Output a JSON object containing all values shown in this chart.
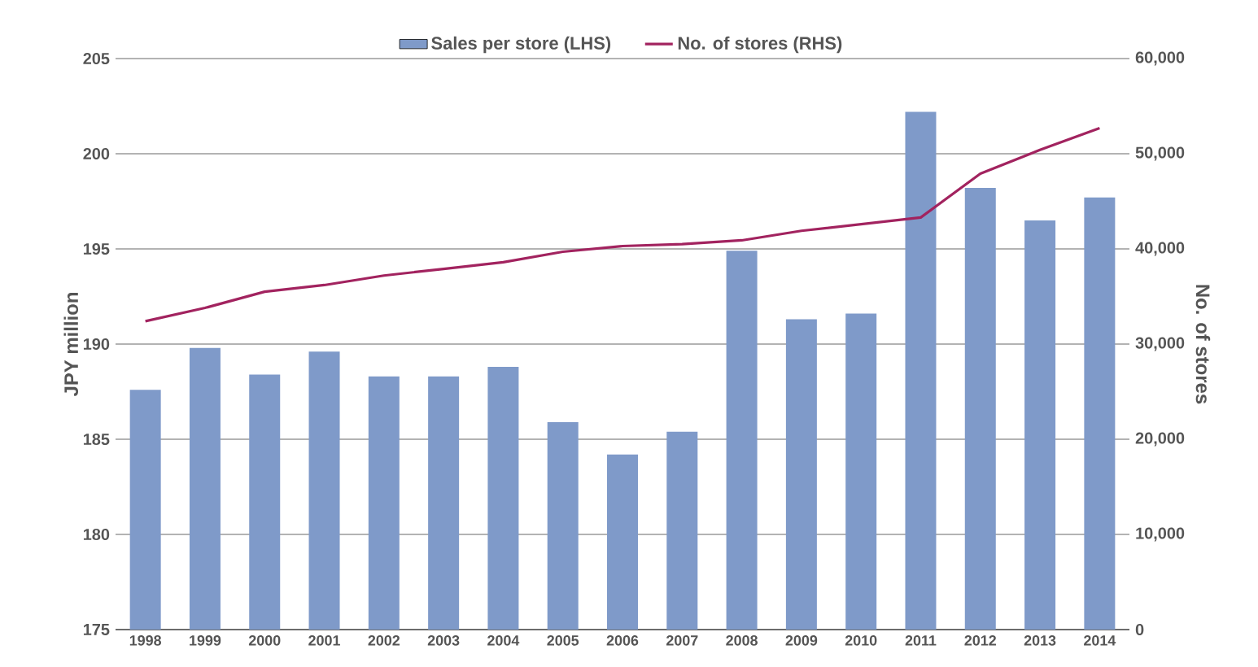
{
  "chart_data": {
    "type": "bar",
    "ylabel": "JPY million",
    "y2label": "No. of stores",
    "categories": [
      "1998",
      "1999",
      "2000",
      "2001",
      "2002",
      "2003",
      "2004",
      "2005",
      "2006",
      "2007",
      "2008",
      "2009",
      "2010",
      "2011",
      "2012",
      "2013",
      "2014"
    ],
    "series": [
      {
        "name": "Sales per store (LHS)",
        "color": "#7f9ac9",
        "values": [
          187.6,
          189.8,
          188.4,
          189.6,
          188.3,
          188.3,
          188.8,
          185.9,
          184.2,
          185.4,
          194.9,
          191.3,
          191.6,
          202.2,
          198.2,
          196.5,
          197.7
        ]
      },
      {
        "name": "No. of stores (RHS)",
        "type": "line",
        "axis": "y2",
        "color": "#a2235f",
        "values": [
          32400,
          33800,
          35500,
          36200,
          37200,
          37900,
          38600,
          39700,
          40300,
          40500,
          40900,
          41900,
          42600,
          43300,
          47900,
          50400,
          52700
        ]
      }
    ],
    "ylim": [
      175,
      205
    ],
    "yticks": [
      175,
      180,
      185,
      190,
      195,
      200,
      205
    ],
    "y2lim": [
      0,
      60000
    ],
    "y2ticks": [
      0,
      {
        "value": 10000,
        "label": "10,000"
      },
      {
        "value": 20000,
        "label": "20,000"
      },
      {
        "value": 30000,
        "label": "30,000"
      },
      {
        "value": 40000,
        "label": "40,000"
      },
      {
        "value": 50000,
        "label": "50,000"
      },
      {
        "value": 60000,
        "label": "60,000"
      }
    ],
    "grid": "y",
    "legend": "top",
    "marker": "none",
    "line_style": "solid"
  }
}
